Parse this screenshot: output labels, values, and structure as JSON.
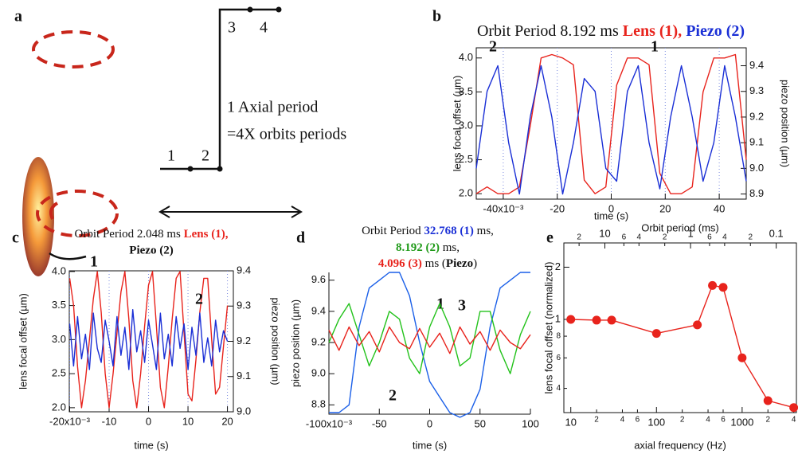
{
  "diagram": {
    "letter": "a",
    "steps": [
      "1",
      "2",
      "3",
      "4"
    ],
    "text": [
      "1 Axial period",
      "=4X orbits periods"
    ]
  },
  "chart_data": [
    {
      "type": "line",
      "letter": "b",
      "title": "Orbit Period 8.192 ms",
      "title_lens": "Lens (1),",
      "title_piezo": "Piezo (2)",
      "x_label": "time (s)",
      "y_label": "lens focal offset (µm)",
      "y2_label": "piezo position (µm)",
      "x": [
        -0.05,
        -0.046,
        -0.042,
        -0.038,
        -0.034,
        -0.03,
        -0.026,
        -0.022,
        -0.018,
        -0.014,
        -0.01,
        -0.006,
        -0.002,
        0.002,
        0.006,
        0.01,
        0.014,
        0.018,
        0.022,
        0.026,
        0.03,
        0.034,
        0.038,
        0.042,
        0.046,
        0.05
      ],
      "series": [
        {
          "label": "1",
          "color": "#e8231c",
          "values": [
            2.0,
            2.1,
            2.0,
            2.0,
            2.1,
            3.0,
            4.0,
            4.05,
            4.0,
            3.9,
            2.2,
            2.0,
            2.1,
            3.6,
            4.0,
            4.0,
            3.9,
            2.3,
            2.0,
            2.0,
            2.1,
            3.5,
            4.0,
            4.0,
            4.05,
            2.5
          ]
        },
        {
          "label": "2",
          "color": "#1a2fd6",
          "axis": "y2",
          "values": [
            9.0,
            9.3,
            9.4,
            9.1,
            8.9,
            9.2,
            9.4,
            9.2,
            8.9,
            9.1,
            9.35,
            9.3,
            9.0,
            8.95,
            9.3,
            9.4,
            9.1,
            8.92,
            9.2,
            9.4,
            9.2,
            8.95,
            9.1,
            9.4,
            9.2,
            8.95
          ]
        }
      ],
      "xlim": [
        -0.05,
        0.05
      ],
      "xticks": [
        {
          "value": -0.04,
          "label": "-40x10⁻³"
        },
        {
          "value": -0.02,
          "label": "-20"
        },
        0,
        {
          "value": 0.02,
          "label": "20"
        },
        {
          "value": 0.04,
          "label": "40"
        }
      ],
      "ylim": [
        1.92,
        4.15
      ],
      "yticks": [
        {
          "value": 2,
          "label": "2.0"
        },
        2.5,
        {
          "value": 3,
          "label": "3.0"
        },
        3.5,
        {
          "value": 4,
          "label": "4.0"
        }
      ],
      "y2lim": [
        8.88,
        9.47
      ],
      "y2ticks": [
        8.9,
        {
          "value": 9,
          "label": "9.0"
        },
        9.1,
        9.2,
        9.3,
        9.4
      ],
      "grid": true
    },
    {
      "type": "line",
      "letter": "c",
      "title": "Orbit Period 2.048 ms",
      "title_lens": "Lens (1),",
      "title_piezo": "Piezo (2)",
      "x_label": "time (s)",
      "y_label": "lens focal offset (µm)",
      "y2_label": "piezo position (µm)",
      "x": [
        -0.02,
        -0.019,
        -0.018,
        -0.017,
        -0.016,
        -0.015,
        -0.014,
        -0.013,
        -0.012,
        -0.011,
        -0.01,
        -0.009,
        -0.008,
        -0.007,
        -0.006,
        -0.005,
        -0.004,
        -0.003,
        -0.002,
        -0.001,
        0,
        0.001,
        0.002,
        0.003,
        0.004,
        0.005,
        0.006,
        0.007,
        0.008,
        0.009,
        0.01,
        0.011,
        0.012,
        0.013,
        0.014,
        0.015,
        0.016,
        0.017,
        0.018,
        0.019,
        0.02
      ],
      "series": [
        {
          "label": "1",
          "color": "#e8231c",
          "values": [
            3.9,
            3.5,
            2.6,
            2.0,
            2.4,
            3.0,
            3.6,
            4.0,
            3.4,
            2.5,
            2.0,
            2.5,
            3.1,
            3.7,
            4.0,
            3.3,
            2.4,
            2.0,
            2.5,
            3.2,
            3.8,
            4.0,
            3.2,
            2.3,
            2.0,
            2.6,
            3.3,
            3.9,
            4.0,
            3.1,
            2.2,
            2.1,
            2.7,
            3.4,
            3.9,
            3.9,
            3.0,
            2.2,
            2.3,
            2.9,
            3.5
          ]
        },
        {
          "label": "2",
          "color": "#1a2fd6",
          "axis": "y2",
          "values": [
            9.25,
            9.13,
            9.27,
            9.15,
            9.22,
            9.12,
            9.28,
            9.18,
            9.14,
            9.26,
            9.2,
            9.13,
            9.27,
            9.16,
            9.24,
            9.12,
            9.29,
            9.17,
            9.23,
            9.14,
            9.26,
            9.19,
            9.12,
            9.28,
            9.15,
            9.22,
            9.13,
            9.27,
            9.18,
            9.25,
            9.12,
            9.24,
            9.16,
            9.28,
            9.14,
            9.21,
            9.13,
            9.26,
            9.17,
            9.23,
            9.2
          ]
        }
      ],
      "xlim": [
        -0.0201,
        0.0215
      ],
      "xticks": [
        {
          "value": -0.02,
          "label": "-20x10⁻³"
        },
        {
          "value": -0.01,
          "label": "-10"
        },
        0,
        {
          "value": 0.01,
          "label": "10"
        },
        {
          "value": 0.02,
          "label": "20"
        }
      ],
      "ylim": [
        1.94,
        4.01
      ],
      "yticks": [
        {
          "value": 2,
          "label": "2.0"
        },
        2.5,
        {
          "value": 3,
          "label": "3.0"
        },
        3.5,
        {
          "value": 4,
          "label": "4.0"
        }
      ],
      "y2lim": [
        9.0,
        9.4
      ],
      "y2ticks": [
        {
          "value": 9,
          "label": "9.0"
        },
        9.1,
        9.2,
        9.3,
        9.4
      ],
      "grid": true
    },
    {
      "type": "line",
      "letter": "d",
      "title": "Orbit Period",
      "title_segments": [
        "32.768 (1)",
        "ms,",
        "8.192 (2)",
        "ms,",
        "4.096 (3)",
        "ms (",
        "Piezo",
        ")"
      ],
      "x_label": "time (s)",
      "y_label": "piezo position (µm)",
      "x": [
        -0.1,
        -0.09,
        -0.08,
        -0.07,
        -0.06,
        -0.05,
        -0.04,
        -0.03,
        -0.02,
        -0.01,
        0,
        0.01,
        0.02,
        0.03,
        0.04,
        0.05,
        0.06,
        0.07,
        0.08,
        0.09,
        0.1
      ],
      "series": [
        {
          "label": "1",
          "color": "#1a5fe8",
          "values": [
            8.75,
            8.75,
            8.8,
            9.3,
            9.55,
            9.6,
            9.65,
            9.65,
            9.5,
            9.2,
            8.95,
            8.85,
            8.75,
            8.72,
            8.75,
            8.9,
            9.3,
            9.55,
            9.6,
            9.65,
            9.65
          ]
        },
        {
          "label": "2",
          "color": "#22c21a",
          "values": [
            9.2,
            9.35,
            9.45,
            9.25,
            9.05,
            9.2,
            9.4,
            9.35,
            9.1,
            9.0,
            9.3,
            9.45,
            9.3,
            9.05,
            9.1,
            9.4,
            9.4,
            9.15,
            9.0,
            9.25,
            9.4
          ]
        },
        {
          "label": "3",
          "color": "#e8231c",
          "values": [
            9.28,
            9.15,
            9.3,
            9.18,
            9.27,
            9.14,
            9.3,
            9.2,
            9.16,
            9.29,
            9.17,
            9.26,
            9.13,
            9.3,
            9.19,
            9.27,
            9.15,
            9.28,
            9.2,
            9.16,
            9.25
          ]
        }
      ],
      "xlim": [
        -0.1,
        0.1
      ],
      "xticks": [
        {
          "value": -0.1,
          "label": "-100x10⁻³"
        },
        {
          "value": -0.05,
          "label": "-50"
        },
        0,
        {
          "value": 0.05,
          "label": "50"
        },
        {
          "value": 0.1,
          "label": "100"
        }
      ],
      "ylim": [
        8.74,
        9.65
      ],
      "yticks": [
        8.8,
        {
          "value": 9,
          "label": "9.0"
        },
        9.2,
        9.4,
        9.6
      ],
      "grid": false
    },
    {
      "type": "scatter",
      "letter": "e",
      "x_label": "axial frequency (Hz)",
      "x2_label": "Orbit period (ms)",
      "y_label": "lens focal offset (normalized)",
      "x": [
        10,
        20,
        30,
        100,
        300,
        450,
        600,
        1000,
        2000,
        4000
      ],
      "series": [
        {
          "color": "#e8231c",
          "values": [
            1.0,
            0.99,
            0.99,
            0.83,
            0.93,
            1.57,
            1.53,
            0.6,
            0.34,
            0.31
          ]
        }
      ],
      "xlog": true,
      "ylog": true,
      "x2log": true,
      "xlim": [
        8.3,
        4300
      ],
      "xticks": [
        10,
        {
          "value": 20,
          "label": "2"
        },
        {
          "value": 40,
          "label": "4"
        },
        {
          "value": 60,
          "label": "6"
        },
        100,
        {
          "value": 200,
          "label": "2"
        },
        {
          "value": 400,
          "label": "4"
        },
        {
          "value": 600,
          "label": "6"
        },
        1000,
        {
          "value": 2000,
          "label": "2"
        },
        {
          "value": 4000,
          "label": "4"
        }
      ],
      "x2lim": [
        30.12,
        0.0581
      ],
      "x2ticks": [
        {
          "value": 20,
          "label": "2"
        },
        10,
        {
          "value": 6,
          "label": "6"
        },
        {
          "value": 4,
          "label": "4"
        },
        {
          "value": 2,
          "label": "2"
        },
        1,
        {
          "value": 0.6,
          "label": "6"
        },
        {
          "value": 0.4,
          "label": "4"
        },
        {
          "value": 0.2,
          "label": "2"
        },
        0.1
      ],
      "ylim": [
        0.29,
        2.76
      ],
      "yticks": [
        {
          "value": 0.4,
          "label": "4"
        },
        {
          "value": 0.6,
          "label": "6"
        },
        {
          "value": 0.8,
          "label": "8"
        },
        1,
        2
      ],
      "grid": false
    }
  ]
}
